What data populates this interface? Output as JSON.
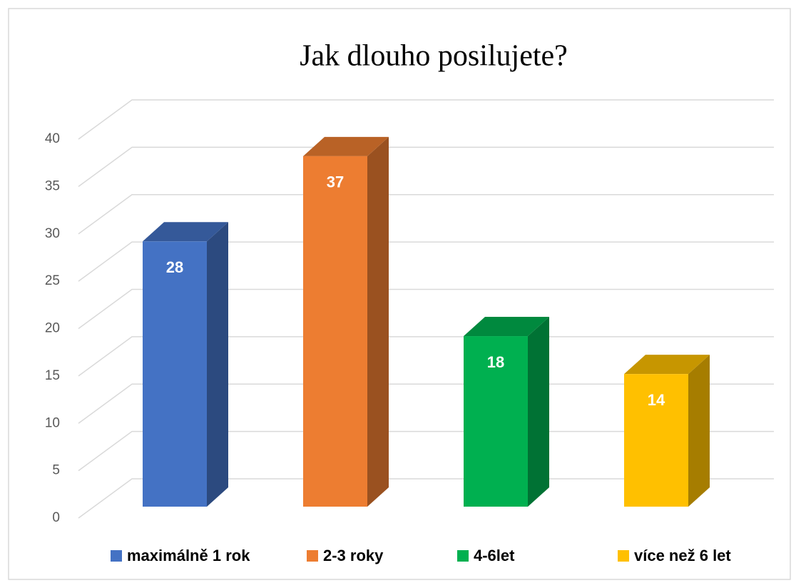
{
  "chart_data": {
    "type": "bar3d",
    "title": "Jak dlouho posilujete?",
    "categories": [
      "maximálně 1 rok",
      "2-3 roky",
      "4-6let",
      "více než 6 let"
    ],
    "values": [
      28,
      37,
      18,
      14
    ],
    "colors": [
      "#4472c4",
      "#ed7d31",
      "#00b050",
      "#ffc000"
    ],
    "ylim": [
      0,
      40
    ],
    "yticks": [
      0,
      5,
      10,
      15,
      20,
      25,
      30,
      35,
      40
    ],
    "grid": true,
    "legend": "bottom"
  }
}
